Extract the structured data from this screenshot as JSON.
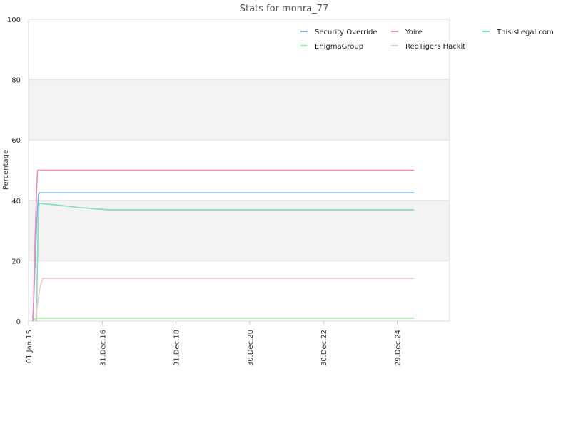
{
  "chart_data": {
    "type": "line",
    "title": "Stats for monra_77",
    "xlabel": "",
    "ylabel": "Percentage",
    "ylim": [
      0,
      100
    ],
    "yticks": [
      0,
      20,
      40,
      60,
      80,
      100
    ],
    "xlim": [
      "2015-01-01",
      "2026-06-01"
    ],
    "xticks": [
      {
        "label": "01.Jan.15",
        "date": "2015-01-01"
      },
      {
        "label": "31.Dec.16",
        "date": "2016-12-31"
      },
      {
        "label": "31.Dec.18",
        "date": "2018-12-31"
      },
      {
        "label": "30.Dec.20",
        "date": "2020-12-30"
      },
      {
        "label": "30.Dec.22",
        "date": "2022-12-30"
      },
      {
        "label": "29.Dec.24",
        "date": "2024-12-29"
      }
    ],
    "grid": true,
    "legend_position": "top-right",
    "series": [
      {
        "name": "Security Override",
        "color": "#7fb2e0",
        "points": [
          [
            "2015-02-14",
            0
          ],
          [
            "2015-02-22",
            8
          ],
          [
            "2015-03-01",
            14
          ],
          [
            "2015-03-10",
            22
          ],
          [
            "2015-03-20",
            30
          ],
          [
            "2015-04-01",
            38
          ],
          [
            "2015-04-10",
            42
          ],
          [
            "2015-04-20",
            42.5
          ],
          [
            "2025-06-15",
            42.5
          ]
        ]
      },
      {
        "name": "Yoire",
        "color": "#f08cbc",
        "points": [
          [
            "2015-02-10",
            0
          ],
          [
            "2015-02-18",
            5
          ],
          [
            "2015-02-26",
            16
          ],
          [
            "2015-03-06",
            27
          ],
          [
            "2015-03-16",
            38
          ],
          [
            "2015-03-26",
            47
          ],
          [
            "2015-04-01",
            50
          ],
          [
            "2025-06-15",
            50
          ]
        ]
      },
      {
        "name": "ThisisLegal.com",
        "color": "#7ee0b4",
        "points": [
          [
            "2015-03-20",
            0
          ],
          [
            "2015-04-05",
            30
          ],
          [
            "2015-04-14",
            39
          ],
          [
            "2015-10-01",
            38.5
          ],
          [
            "2016-06-01",
            37.6
          ],
          [
            "2017-03-01",
            36.9
          ],
          [
            "2025-06-15",
            36.9
          ]
        ]
      },
      {
        "name": "EnigmaGroup",
        "color": "#a2eaa2",
        "points": [
          [
            "2015-02-15",
            0.5
          ],
          [
            "2015-03-15",
            1
          ],
          [
            "2025-06-15",
            1
          ]
        ]
      },
      {
        "name": "RedTigers Hackit",
        "color": "#f4c8c8",
        "points": [
          [
            "2015-03-10",
            0
          ],
          [
            "2015-04-01",
            6
          ],
          [
            "2015-04-25",
            11
          ],
          [
            "2015-05-20",
            14.2
          ],
          [
            "2025-06-15",
            14.2
          ]
        ]
      }
    ]
  }
}
